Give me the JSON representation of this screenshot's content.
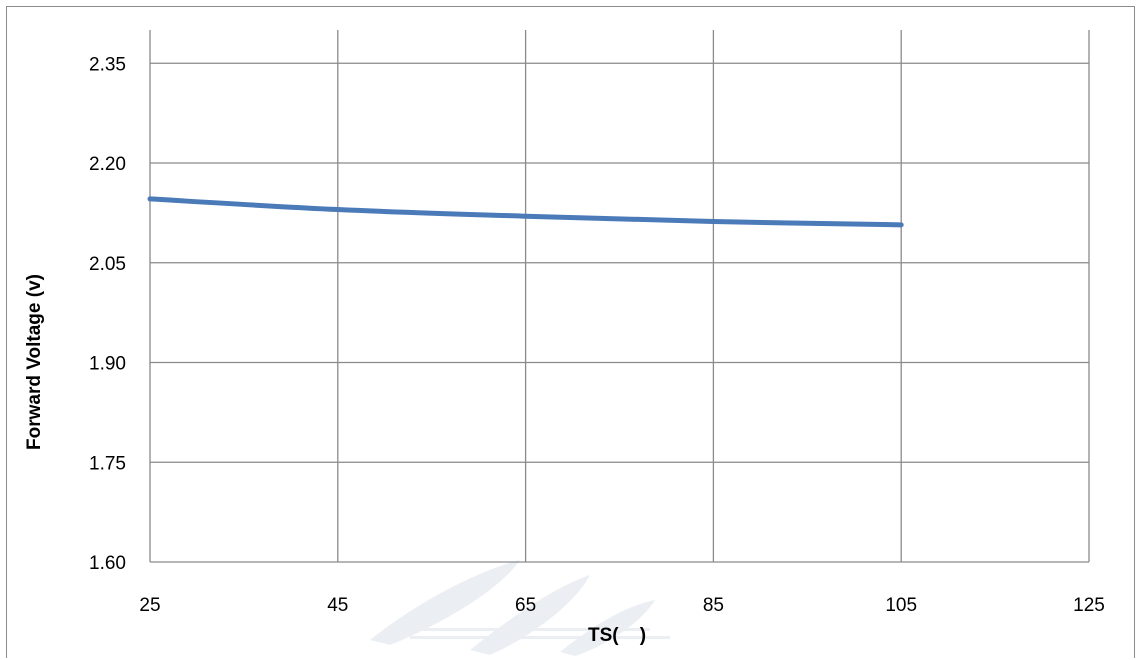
{
  "chart_data": {
    "type": "line",
    "title": "",
    "xlabel": "TS(    )",
    "ylabel": "Forward Voltage (v)",
    "xlim": [
      25,
      125
    ],
    "ylim": [
      1.6,
      2.4
    ],
    "x_ticks": [
      25,
      45,
      65,
      85,
      105,
      125
    ],
    "x_tick_labels": [
      "25",
      "45",
      "65",
      "85",
      "105",
      "125"
    ],
    "y_ticks": [
      1.6,
      1.75,
      1.9,
      2.05,
      2.2,
      2.35
    ],
    "y_tick_labels": [
      "1.60",
      "1.75",
      "1.90",
      "2.05",
      "2.20",
      "2.35"
    ],
    "grid": true,
    "series": [
      {
        "color": "#4a7ab8",
        "x": [
          25,
          45,
          65,
          85,
          105
        ],
        "y": [
          2.146,
          2.13,
          2.12,
          2.112,
          2.107
        ]
      }
    ]
  }
}
